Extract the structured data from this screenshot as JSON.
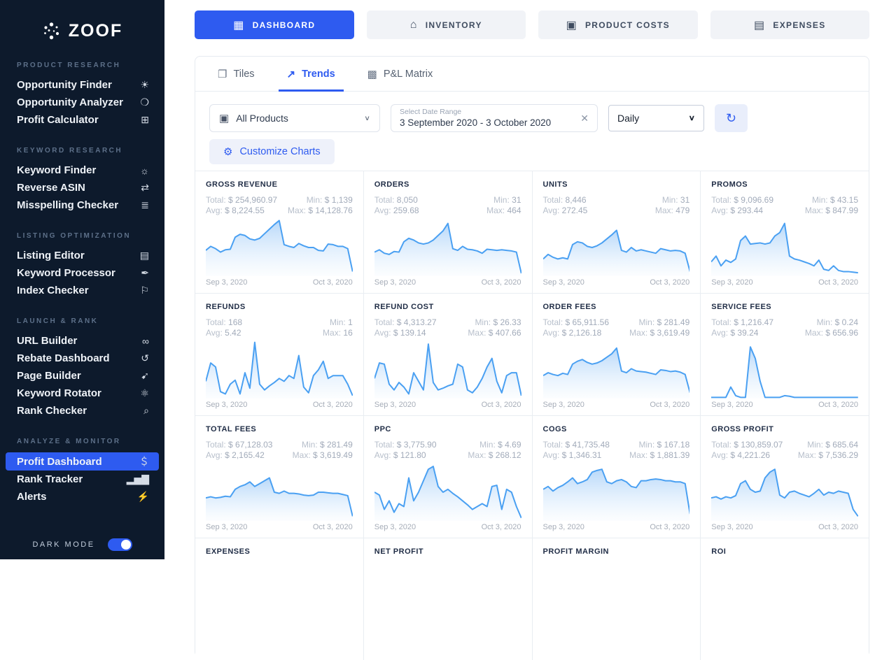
{
  "colors": {
    "accent": "#2e5bf0",
    "sidebar_bg": "#0d1a2c",
    "spark_line": "#4aa0f2",
    "inactive_btn_bg": "#f1f3f7"
  },
  "sidebar": {
    "logo_text": "ZOOF",
    "sections": [
      {
        "title": "PRODUCT RESEARCH",
        "items": [
          {
            "label": "Opportunity Finder",
            "icon": "lightbulb-icon",
            "glyph": "☀"
          },
          {
            "label": "Opportunity Analyzer",
            "icon": "planet-search-icon",
            "glyph": "❍"
          },
          {
            "label": "Profit Calculator",
            "icon": "calculator-icon",
            "glyph": "⊞"
          }
        ]
      },
      {
        "title": "KEYWORD RESEARCH",
        "items": [
          {
            "label": "Keyword Finder",
            "icon": "sun-icon",
            "glyph": "☼"
          },
          {
            "label": "Reverse ASIN",
            "icon": "swap-arrows-icon",
            "glyph": "⇄"
          },
          {
            "label": "Misspelling Checker",
            "icon": "layers-icon",
            "glyph": "≣"
          }
        ]
      },
      {
        "title": "LISTING OPTIMIZATION",
        "items": [
          {
            "label": "Listing Editor",
            "icon": "document-edit-icon",
            "glyph": "▤"
          },
          {
            "label": "Keyword Processor",
            "icon": "key-icon",
            "glyph": "✒"
          },
          {
            "label": "Index Checker",
            "icon": "flag-icon",
            "glyph": "⚐"
          }
        ]
      },
      {
        "title": "LAUNCH & RANK",
        "items": [
          {
            "label": "URL Builder",
            "icon": "link-icon",
            "glyph": "∞"
          },
          {
            "label": "Rebate Dashboard",
            "icon": "dollar-rotate-icon",
            "glyph": "↺"
          },
          {
            "label": "Page Builder",
            "icon": "rocket-icon",
            "glyph": "➹"
          },
          {
            "label": "Keyword Rotator",
            "icon": "atom-icon",
            "glyph": "⚛"
          },
          {
            "label": "Rank Checker",
            "icon": "magnifier-icon",
            "glyph": "⌕"
          }
        ]
      },
      {
        "title": "ANALYZE & MONITOR",
        "items": [
          {
            "label": "Profit Dashboard",
            "icon": "money-bag-icon",
            "glyph": "＄",
            "active": true
          },
          {
            "label": "Rank Tracker",
            "icon": "bar-chart-icon",
            "glyph": "▂▅▇"
          },
          {
            "label": "Alerts",
            "icon": "megaphone-icon",
            "glyph": "⚡"
          }
        ]
      }
    ],
    "dark_mode_label": "DARK MODE",
    "dark_mode_on": true
  },
  "topnav": {
    "buttons": [
      {
        "label": "DASHBOARD",
        "icon": "dashboard-grid-icon",
        "glyph": "▦",
        "active": true
      },
      {
        "label": "INVENTORY",
        "icon": "warehouse-icon",
        "glyph": "⌂"
      },
      {
        "label": "PRODUCT COSTS",
        "icon": "box-icon",
        "glyph": "▣"
      },
      {
        "label": "EXPENSES",
        "icon": "receipt-icon",
        "glyph": "▤"
      }
    ]
  },
  "tabs": [
    {
      "label": "Tiles",
      "icon": "tiles-icon",
      "glyph": "❐"
    },
    {
      "label": "Trends",
      "icon": "trends-icon",
      "glyph": "↗",
      "active": true
    },
    {
      "label": "P&L Matrix",
      "icon": "matrix-icon",
      "glyph": "▩"
    }
  ],
  "filters": {
    "product_filter": {
      "value": "All Products",
      "icon": "products-box-icon",
      "glyph": "▣",
      "chevron": "∨"
    },
    "date_range": {
      "label": "Select Date Range",
      "value": "3 September 2020 - 3 October 2020",
      "clear_glyph": "✕"
    },
    "granularity": {
      "value": "Daily",
      "chevron": "∨"
    },
    "refresh_glyph": "↻",
    "customize": {
      "label": "Customize Charts",
      "gear_glyph": "⚙"
    }
  },
  "tiles_common": {
    "date_start": "Sep 3, 2020",
    "date_end": "Oct 3, 2020",
    "labels": {
      "total": "Total:",
      "avg": "Avg:",
      "min": "Min:",
      "max": "Max:"
    }
  },
  "chart_data": [
    {
      "type": "area",
      "title": "GROSS REVENUE",
      "total": "$ 254,960.97",
      "avg": "$ 8,224.55",
      "min": "$ 1,139",
      "max": "$ 14,128.76",
      "values": [
        45,
        52,
        48,
        42,
        46,
        47,
        68,
        73,
        71,
        65,
        63,
        66,
        74,
        82,
        90,
        97,
        55,
        52,
        50,
        57,
        53,
        50,
        50,
        45,
        44,
        56,
        55,
        52,
        52,
        48,
        8
      ]
    },
    {
      "type": "area",
      "title": "ORDERS",
      "total": "8,050",
      "avg": "259.68",
      "min": "31",
      "max": "464",
      "values": [
        42,
        46,
        40,
        38,
        43,
        42,
        60,
        66,
        63,
        58,
        56,
        58,
        63,
        71,
        79,
        92,
        48,
        45,
        52,
        47,
        46,
        44,
        40,
        47,
        46,
        45,
        46,
        45,
        44,
        42,
        5
      ]
    },
    {
      "type": "area",
      "title": "UNITS",
      "total": "8,446",
      "avg": "272.45",
      "min": "31",
      "max": "479",
      "values": [
        30,
        38,
        33,
        30,
        32,
        30,
        55,
        60,
        58,
        52,
        50,
        53,
        58,
        65,
        72,
        80,
        45,
        42,
        50,
        44,
        46,
        44,
        42,
        40,
        48,
        46,
        44,
        45,
        44,
        40,
        8
      ]
    },
    {
      "type": "area",
      "title": "PROMOS",
      "total": "$ 9,096.69",
      "avg": "$ 293.44",
      "min": "$ 43.15",
      "max": "$ 847.99",
      "values": [
        25,
        35,
        18,
        28,
        24,
        30,
        62,
        70,
        56,
        57,
        58,
        56,
        58,
        70,
        76,
        92,
        35,
        30,
        28,
        25,
        22,
        18,
        28,
        12,
        10,
        18,
        10,
        8,
        8,
        7,
        6
      ]
    },
    {
      "type": "area",
      "title": "REFUNDS",
      "total": "168",
      "avg": "5.42",
      "min": "1",
      "max": "16",
      "values": [
        30,
        62,
        55,
        12,
        8,
        25,
        32,
        8,
        45,
        18,
        98,
        25,
        15,
        22,
        28,
        35,
        30,
        40,
        35,
        75,
        20,
        10,
        40,
        50,
        65,
        35,
        40,
        40,
        40,
        25,
        5
      ]
    },
    {
      "type": "area",
      "title": "REFUND COST",
      "total": "$ 4,313.27",
      "avg": "$ 139.14",
      "min": "$ 26.33",
      "max": "$ 407.66",
      "values": [
        35,
        62,
        60,
        25,
        15,
        28,
        20,
        8,
        45,
        30,
        15,
        95,
        28,
        15,
        18,
        22,
        25,
        60,
        55,
        15,
        10,
        20,
        35,
        55,
        70,
        30,
        10,
        40,
        45,
        45,
        5
      ]
    },
    {
      "type": "area",
      "title": "ORDER FEES",
      "total": "$ 65,911.56",
      "avg": "$ 2,126.18",
      "min": "$ 281.49",
      "max": "$ 3,619.49",
      "values": [
        40,
        45,
        42,
        40,
        44,
        42,
        60,
        65,
        68,
        63,
        60,
        62,
        66,
        72,
        78,
        88,
        48,
        45,
        52,
        48,
        47,
        46,
        44,
        42,
        50,
        49,
        47,
        48,
        46,
        42,
        10
      ]
    },
    {
      "type": "area",
      "title": "SERVICE FEES",
      "total": "$ 1,216.47",
      "avg": "$ 39.24",
      "min": "$ 0.24",
      "max": "$ 656.96",
      "values": [
        2,
        2,
        2,
        2,
        20,
        5,
        2,
        2,
        90,
        70,
        30,
        2,
        2,
        2,
        2,
        5,
        4,
        2,
        2,
        2,
        2,
        2,
        2,
        2,
        2,
        2,
        2,
        2,
        2,
        2,
        2
      ]
    },
    {
      "type": "area",
      "title": "TOTAL FEES",
      "total": "$ 67,128.03",
      "avg": "$ 2,165.42",
      "min": "$ 281.49",
      "max": "$ 3,619.49",
      "values": [
        40,
        42,
        40,
        41,
        43,
        42,
        55,
        60,
        63,
        68,
        60,
        65,
        70,
        75,
        50,
        48,
        52,
        48,
        48,
        47,
        45,
        44,
        45,
        50,
        50,
        49,
        48,
        48,
        46,
        44,
        8
      ]
    },
    {
      "type": "area",
      "title": "PPC",
      "total": "$ 3,775.90",
      "avg": "$ 121.80",
      "min": "$ 4.69",
      "max": "$ 268.12",
      "values": [
        50,
        45,
        20,
        35,
        15,
        30,
        25,
        75,
        35,
        50,
        70,
        90,
        95,
        60,
        50,
        55,
        48,
        42,
        35,
        28,
        20,
        25,
        30,
        25,
        60,
        62,
        20,
        55,
        50,
        25,
        5
      ]
    },
    {
      "type": "area",
      "title": "COGS",
      "total": "$ 41,735.48",
      "avg": "$ 1,346.31",
      "min": "$ 167.18",
      "max": "$ 1,881.39",
      "values": [
        55,
        60,
        52,
        58,
        62,
        68,
        75,
        65,
        68,
        72,
        85,
        88,
        90,
        68,
        65,
        70,
        72,
        68,
        60,
        58,
        70,
        70,
        72,
        73,
        72,
        70,
        70,
        68,
        68,
        65,
        12
      ]
    },
    {
      "type": "area",
      "title": "GROSS PROFIT",
      "total": "$ 130,859.07",
      "avg": "$ 4,221.26",
      "min": "$ 685.64",
      "max": "$ 7,536.29",
      "values": [
        40,
        42,
        38,
        42,
        40,
        44,
        65,
        70,
        55,
        50,
        52,
        75,
        85,
        90,
        45,
        40,
        50,
        52,
        48,
        45,
        42,
        48,
        55,
        45,
        50,
        48,
        52,
        50,
        48,
        20,
        8
      ]
    },
    {
      "type": "area",
      "title": "EXPENSES"
    },
    {
      "type": "area",
      "title": "NET PROFIT"
    },
    {
      "type": "area",
      "title": "PROFIT MARGIN"
    },
    {
      "type": "area",
      "title": "ROI"
    }
  ]
}
